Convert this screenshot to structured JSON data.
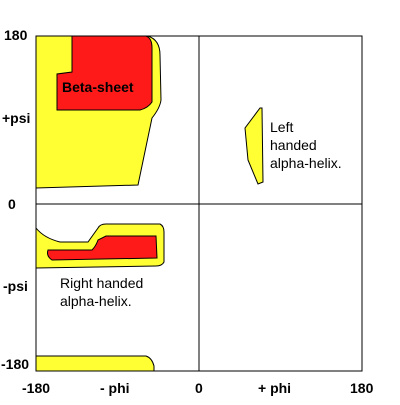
{
  "axes": {
    "y_top": "180",
    "y_psi_pos": "+psi",
    "y_zero": "0",
    "y_psi_neg": "-psi",
    "y_bottom": "-180",
    "x_left": "-180",
    "x_phi_neg": "- phi",
    "x_zero": "0",
    "x_phi_pos": "+ phi",
    "x_right": "180"
  },
  "regions": {
    "beta_sheet": "Beta-sheet",
    "left_helix": [
      "Left",
      "handed",
      "alpha-helix."
    ],
    "right_helix": [
      "Right handed",
      "alpha-helix."
    ]
  },
  "colors": {
    "allowed": "#ffff33",
    "favored": "#ff1a1a",
    "outline": "#000000"
  }
}
